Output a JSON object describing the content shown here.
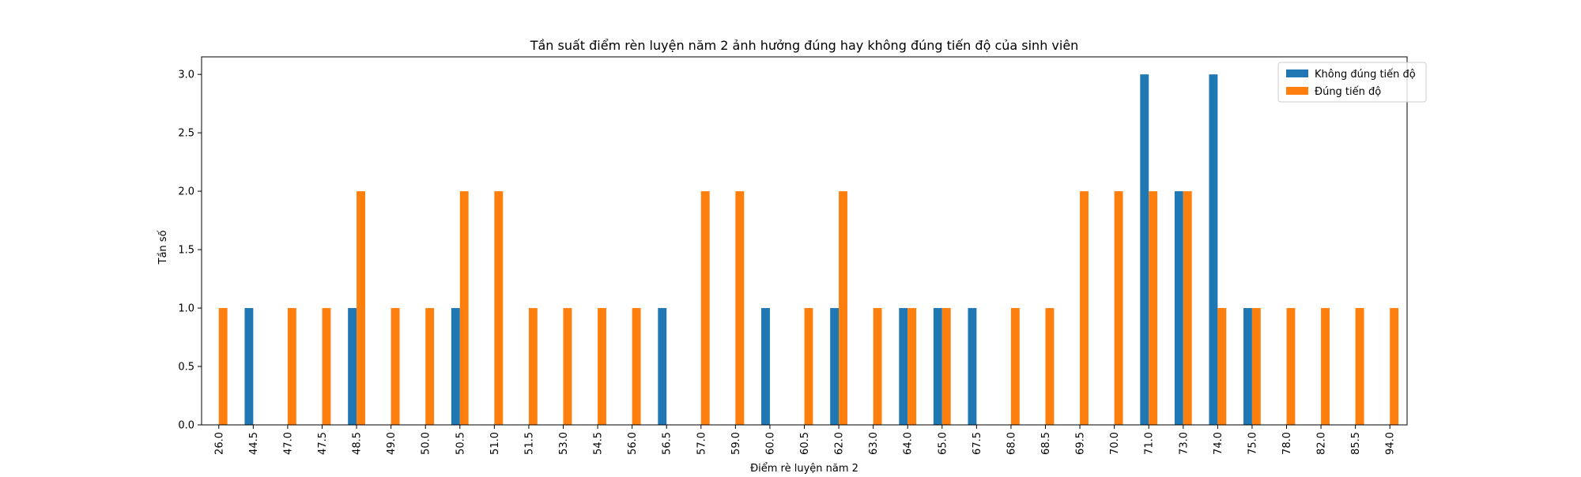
{
  "chart_data": {
    "type": "bar",
    "title": "Tần suất điểm rèn luyện năm 2 ảnh hưởng đúng hay không đúng tiến độ của sinh viên",
    "xlabel": "Điểm rè luyện năm 2",
    "ylabel": "Tần số",
    "ylim": [
      0,
      3.15
    ],
    "yticks": [
      "0.0",
      "0.5",
      "1.0",
      "1.5",
      "2.0",
      "2.5",
      "3.0"
    ],
    "grid": false,
    "legend_position": "top-right",
    "categories": [
      "26.0",
      "44.5",
      "47.0",
      "47.5",
      "48.5",
      "49.0",
      "50.0",
      "50.5",
      "51.0",
      "51.5",
      "53.0",
      "54.5",
      "56.0",
      "56.5",
      "57.0",
      "59.0",
      "60.0",
      "60.5",
      "62.0",
      "63.0",
      "64.0",
      "65.0",
      "67.5",
      "68.0",
      "68.5",
      "69.5",
      "70.0",
      "71.0",
      "73.0",
      "74.0",
      "75.0",
      "78.0",
      "82.0",
      "85.5",
      "94.0"
    ],
    "series": [
      {
        "name": "Không đúng tiến độ",
        "color": "#1f77b4",
        "values": [
          0,
          1,
          0,
          0,
          1,
          0,
          0,
          1,
          0,
          0,
          0,
          0,
          0,
          1,
          0,
          0,
          1,
          0,
          1,
          0,
          1,
          1,
          1,
          0,
          0,
          0,
          0,
          3,
          2,
          3,
          1,
          0,
          0,
          0,
          0
        ]
      },
      {
        "name": "Đúng tiến độ",
        "color": "#ff7f0e",
        "values": [
          1,
          0,
          1,
          1,
          2,
          1,
          1,
          2,
          2,
          1,
          1,
          1,
          1,
          0,
          2,
          2,
          0,
          1,
          2,
          1,
          1,
          1,
          0,
          1,
          1,
          2,
          2,
          2,
          2,
          1,
          1,
          1,
          1,
          1,
          1
        ]
      }
    ]
  }
}
